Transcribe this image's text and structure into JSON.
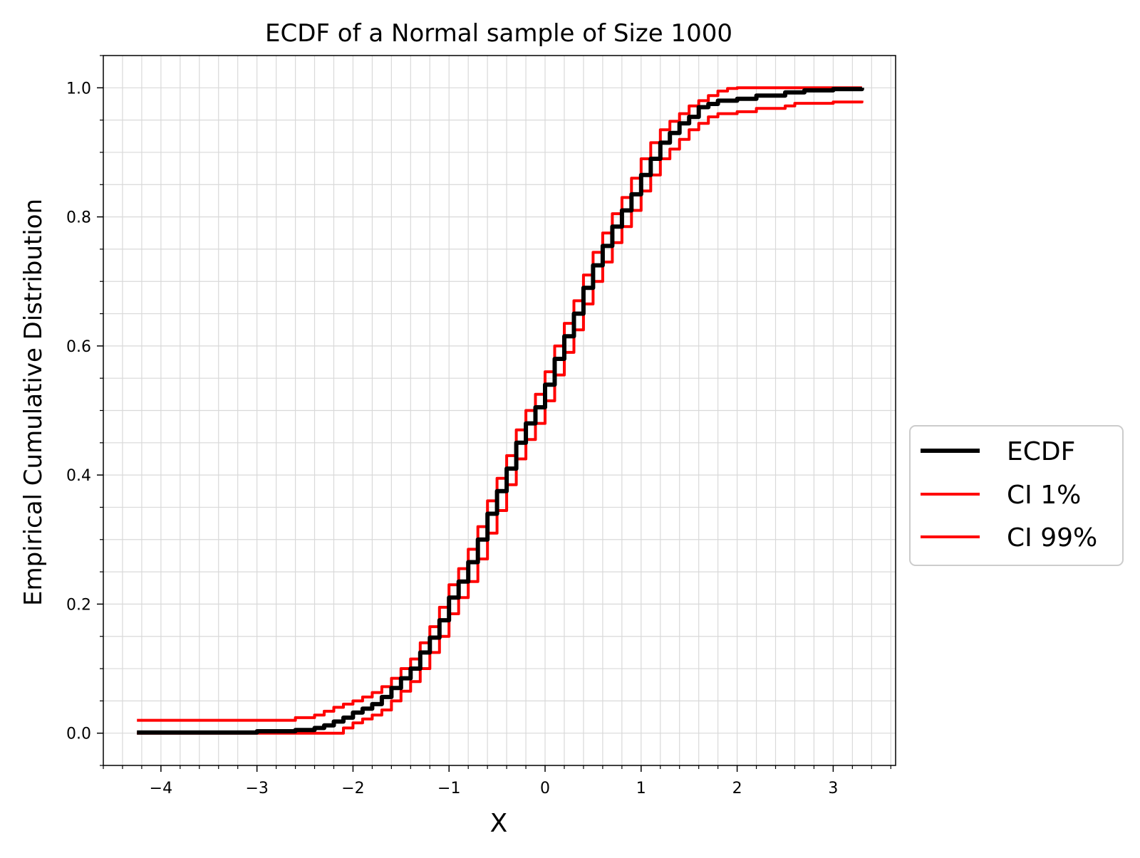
{
  "chart_data": {
    "type": "line",
    "title": "ECDF of a Normal sample of Size 1000",
    "xlabel": "X",
    "ylabel": "Empirical Cumulative Distribution",
    "xlim": [
      -4.6,
      3.65
    ],
    "ylim": [
      -0.05,
      1.05
    ],
    "xticks": [
      -4,
      -3,
      -2,
      -1,
      0,
      1,
      2,
      3
    ],
    "xtick_labels": [
      "−4",
      "−3",
      "−2",
      "−1",
      "0",
      "1",
      "2",
      "3"
    ],
    "yticks": [
      0.0,
      0.2,
      0.4,
      0.6,
      0.8,
      1.0
    ],
    "ytick_labels": [
      "0.0",
      "0.2",
      "0.4",
      "0.6",
      "0.8",
      "1.0"
    ],
    "grid": true,
    "minor_grid": true,
    "legend_position": "outside-right",
    "series": [
      {
        "name": "ECDF",
        "color": "#000000",
        "x": [
          -4.25,
          -3.0,
          -2.6,
          -2.4,
          -2.3,
          -2.2,
          -2.1,
          -2.0,
          -1.9,
          -1.8,
          -1.7,
          -1.6,
          -1.5,
          -1.4,
          -1.3,
          -1.2,
          -1.1,
          -1.0,
          -0.9,
          -0.8,
          -0.7,
          -0.6,
          -0.5,
          -0.4,
          -0.3,
          -0.2,
          -0.1,
          0.0,
          0.1,
          0.2,
          0.3,
          0.4,
          0.5,
          0.6,
          0.7,
          0.8,
          0.9,
          1.0,
          1.1,
          1.2,
          1.3,
          1.4,
          1.5,
          1.6,
          1.7,
          1.8,
          2.0,
          2.2,
          2.5,
          2.7,
          3.0,
          3.3
        ],
        "y": [
          0.001,
          0.003,
          0.005,
          0.008,
          0.012,
          0.018,
          0.024,
          0.032,
          0.038,
          0.045,
          0.056,
          0.07,
          0.085,
          0.1,
          0.125,
          0.148,
          0.175,
          0.21,
          0.235,
          0.265,
          0.3,
          0.34,
          0.375,
          0.41,
          0.45,
          0.48,
          0.505,
          0.54,
          0.58,
          0.615,
          0.65,
          0.69,
          0.725,
          0.755,
          0.785,
          0.81,
          0.835,
          0.865,
          0.89,
          0.915,
          0.93,
          0.945,
          0.955,
          0.97,
          0.975,
          0.98,
          0.983,
          0.988,
          0.993,
          0.996,
          0.998,
          1.0
        ]
      },
      {
        "name": "CI 1%",
        "color": "#ff0000",
        "x": [
          -4.25,
          -2.2,
          -2.1,
          -2.0,
          -1.9,
          -1.8,
          -1.7,
          -1.6,
          -1.5,
          -1.4,
          -1.3,
          -1.2,
          -1.1,
          -1.0,
          -0.9,
          -0.8,
          -0.7,
          -0.6,
          -0.5,
          -0.4,
          -0.3,
          -0.2,
          -0.1,
          0.0,
          0.1,
          0.2,
          0.3,
          0.4,
          0.5,
          0.6,
          0.7,
          0.8,
          0.9,
          1.0,
          1.1,
          1.2,
          1.3,
          1.4,
          1.5,
          1.6,
          1.7,
          1.8,
          2.0,
          2.2,
          2.5,
          2.6,
          3.0,
          3.3
        ],
        "y": [
          0.0,
          0.0,
          0.008,
          0.016,
          0.022,
          0.028,
          0.036,
          0.05,
          0.065,
          0.08,
          0.1,
          0.125,
          0.15,
          0.185,
          0.21,
          0.235,
          0.27,
          0.31,
          0.345,
          0.385,
          0.425,
          0.455,
          0.48,
          0.515,
          0.555,
          0.59,
          0.625,
          0.665,
          0.7,
          0.73,
          0.76,
          0.785,
          0.81,
          0.84,
          0.865,
          0.89,
          0.905,
          0.92,
          0.935,
          0.945,
          0.955,
          0.96,
          0.963,
          0.968,
          0.972,
          0.976,
          0.978,
          0.98
        ]
      },
      {
        "name": "CI 99%",
        "color": "#ff0000",
        "x": [
          -4.25,
          -3.0,
          -2.6,
          -2.4,
          -2.3,
          -2.2,
          -2.1,
          -2.0,
          -1.9,
          -1.8,
          -1.7,
          -1.6,
          -1.5,
          -1.4,
          -1.3,
          -1.2,
          -1.1,
          -1.0,
          -0.9,
          -0.8,
          -0.7,
          -0.6,
          -0.5,
          -0.4,
          -0.3,
          -0.2,
          -0.1,
          0.0,
          0.1,
          0.2,
          0.3,
          0.4,
          0.5,
          0.6,
          0.7,
          0.8,
          0.9,
          1.0,
          1.1,
          1.2,
          1.3,
          1.4,
          1.5,
          1.6,
          1.7,
          1.8,
          1.9,
          2.0,
          3.3
        ],
        "y": [
          0.02,
          0.02,
          0.024,
          0.028,
          0.034,
          0.04,
          0.045,
          0.05,
          0.056,
          0.063,
          0.072,
          0.085,
          0.1,
          0.115,
          0.14,
          0.165,
          0.195,
          0.23,
          0.255,
          0.285,
          0.32,
          0.36,
          0.395,
          0.43,
          0.47,
          0.5,
          0.525,
          0.56,
          0.6,
          0.635,
          0.67,
          0.71,
          0.745,
          0.775,
          0.805,
          0.83,
          0.86,
          0.89,
          0.915,
          0.935,
          0.948,
          0.96,
          0.972,
          0.98,
          0.988,
          0.995,
          0.999,
          1.0,
          1.0
        ]
      }
    ]
  }
}
